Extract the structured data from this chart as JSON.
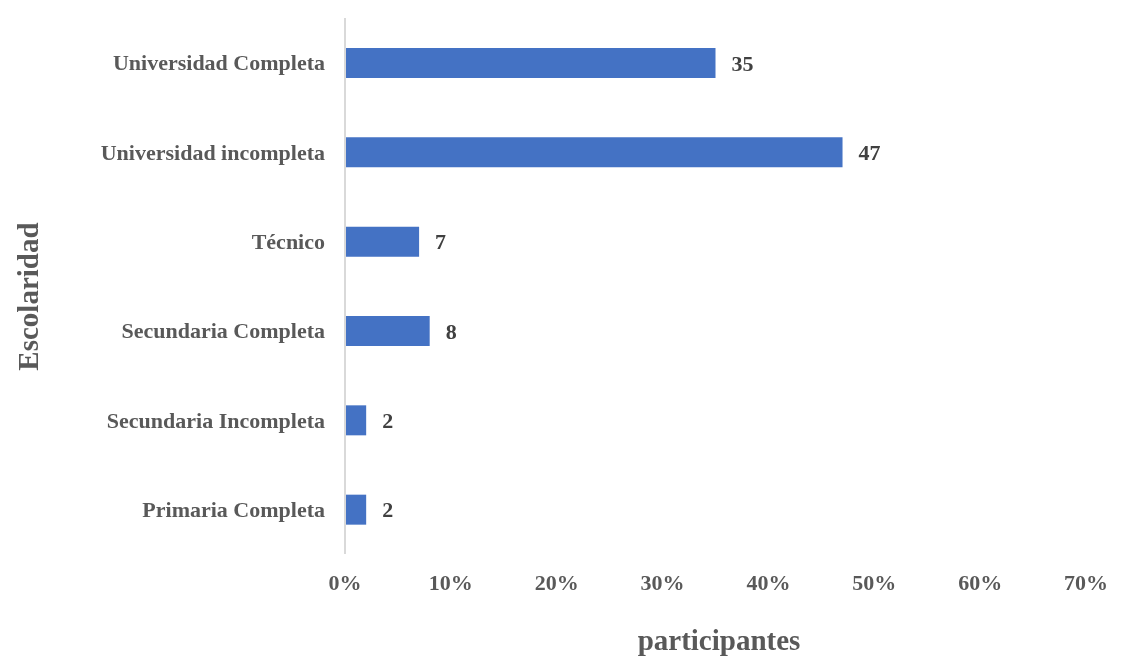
{
  "chart_data": {
    "type": "bar",
    "orientation": "horizontal",
    "categories": [
      "Universidad Completa",
      "Universidad incompleta",
      "Técnico",
      "Secundaria Completa",
      "Secundaria Incompleta",
      "Primaria Completa"
    ],
    "values": [
      35,
      47,
      7,
      8,
      2,
      2
    ],
    "color": "#4472c4",
    "xlim": [
      0,
      70
    ],
    "xticks": [
      {
        "value": 0,
        "label": "0%"
      },
      {
        "value": 10,
        "label": "10%"
      },
      {
        "value": 20,
        "label": "20%"
      },
      {
        "value": 30,
        "label": "30%"
      },
      {
        "value": 40,
        "label": "40%"
      },
      {
        "value": 50,
        "label": "50%"
      },
      {
        "value": 60,
        "label": "60%"
      },
      {
        "value": 70,
        "label": "70%"
      }
    ],
    "xlabel": "participantes",
    "ylabel": "Escolaridad",
    "data_labels": true
  }
}
